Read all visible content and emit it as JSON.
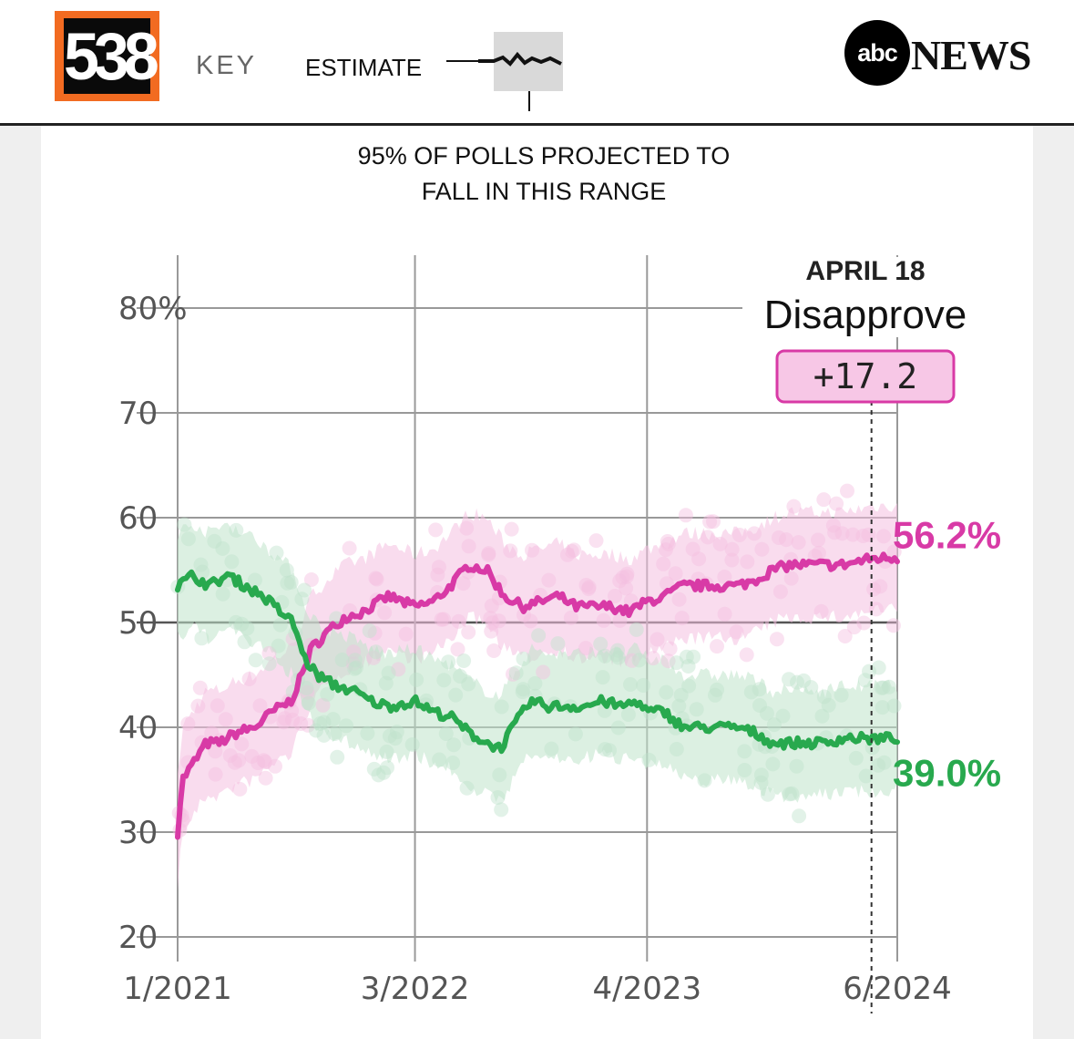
{
  "header": {
    "logo": "538",
    "key_label": "KEY",
    "estimate_label": "ESTIMATE",
    "abc_logo": "abc",
    "abc_news": "NEWS",
    "key_caption_line1": "95% OF POLLS PROJECTED TO",
    "key_caption_line2": "FALL IN THIS RANGE"
  },
  "colors": {
    "disapprove": "#d83aa6",
    "approve": "#28a94e",
    "disapprove_band": "#f4bfe0",
    "approve_band": "#bfe3cb",
    "grid": "#999999"
  },
  "annotation": {
    "date": "APRIL 18",
    "label": "Disapprove",
    "margin": "+17.2"
  },
  "chart_data": {
    "type": "line",
    "title": "",
    "xlabel": "",
    "ylabel": "",
    "x_tick_labels": [
      "1/2021",
      "3/2022",
      "4/2023",
      "6/2024"
    ],
    "y_tick_labels": [
      "20",
      "30",
      "40",
      "50",
      "60",
      "70",
      "80%"
    ],
    "y_ticks": [
      20,
      30,
      40,
      50,
      60,
      70,
      80
    ],
    "ylim": [
      20,
      85
    ],
    "xlim": [
      "2021-01-20",
      "2024-06-01"
    ],
    "x_ticks": [
      "2021-01-20",
      "2022-03-01",
      "2023-04-01",
      "2024-06-01"
    ],
    "highlight_date": "2024-04-18",
    "grid": true,
    "band_halfwidth": 5,
    "series": [
      {
        "key": "disapprove",
        "end_label": "56.2%",
        "points": [
          [
            "2021-01-20",
            30.0
          ],
          [
            "2021-01-28",
            35.0
          ],
          [
            "2021-02-15",
            36.5
          ],
          [
            "2021-03-10",
            38.5
          ],
          [
            "2021-04-01",
            38.5
          ],
          [
            "2021-05-01",
            39.5
          ],
          [
            "2021-06-01",
            40.0
          ],
          [
            "2021-07-01",
            41.5
          ],
          [
            "2021-08-01",
            42.5
          ],
          [
            "2021-08-20",
            45.0
          ],
          [
            "2021-09-05",
            47.5
          ],
          [
            "2021-10-01",
            49.0
          ],
          [
            "2021-11-01",
            50.5
          ],
          [
            "2021-12-01",
            51.0
          ],
          [
            "2022-01-15",
            52.5
          ],
          [
            "2022-03-01",
            51.5
          ],
          [
            "2022-04-01",
            52.0
          ],
          [
            "2022-05-01",
            53.5
          ],
          [
            "2022-06-01",
            55.5
          ],
          [
            "2022-07-01",
            55.0
          ],
          [
            "2022-08-01",
            52.5
          ],
          [
            "2022-09-01",
            51.5
          ],
          [
            "2022-10-01",
            52.0
          ],
          [
            "2022-11-01",
            52.5
          ],
          [
            "2022-12-01",
            51.5
          ],
          [
            "2023-01-01",
            51.5
          ],
          [
            "2023-02-01",
            51.5
          ],
          [
            "2023-03-01",
            51.0
          ],
          [
            "2023-04-01",
            52.0
          ],
          [
            "2023-05-01",
            52.5
          ],
          [
            "2023-06-01",
            53.5
          ],
          [
            "2023-07-01",
            53.5
          ],
          [
            "2023-08-01",
            53.5
          ],
          [
            "2023-09-01",
            53.5
          ],
          [
            "2023-10-01",
            54.0
          ],
          [
            "2023-11-01",
            55.0
          ],
          [
            "2023-12-01",
            55.5
          ],
          [
            "2024-01-01",
            55.5
          ],
          [
            "2024-02-01",
            55.5
          ],
          [
            "2024-03-01",
            55.5
          ],
          [
            "2024-04-18",
            56.1
          ],
          [
            "2024-06-01",
            56.2
          ]
        ]
      },
      {
        "key": "approve",
        "end_label": "39.0%",
        "points": [
          [
            "2021-01-20",
            53.5
          ],
          [
            "2021-02-15",
            54.5
          ],
          [
            "2021-03-15",
            53.5
          ],
          [
            "2021-04-15",
            54.5
          ],
          [
            "2021-05-15",
            53.5
          ],
          [
            "2021-06-15",
            52.5
          ],
          [
            "2021-07-15",
            51.0
          ],
          [
            "2021-08-05",
            50.0
          ],
          [
            "2021-08-25",
            46.5
          ],
          [
            "2021-09-15",
            45.0
          ],
          [
            "2021-10-15",
            44.0
          ],
          [
            "2021-11-15",
            43.5
          ],
          [
            "2021-12-15",
            42.5
          ],
          [
            "2022-01-15",
            42.0
          ],
          [
            "2022-03-01",
            42.5
          ],
          [
            "2022-04-01",
            41.5
          ],
          [
            "2022-05-01",
            41.0
          ],
          [
            "2022-06-01",
            39.5
          ],
          [
            "2022-07-01",
            38.5
          ],
          [
            "2022-07-25",
            38.0
          ],
          [
            "2022-08-15",
            40.0
          ],
          [
            "2022-09-15",
            42.5
          ],
          [
            "2022-10-15",
            42.0
          ],
          [
            "2022-11-15",
            42.0
          ],
          [
            "2022-12-15",
            42.0
          ],
          [
            "2023-01-15",
            42.5
          ],
          [
            "2023-02-15",
            42.0
          ],
          [
            "2023-03-15",
            42.5
          ],
          [
            "2023-04-01",
            41.5
          ],
          [
            "2023-05-01",
            41.5
          ],
          [
            "2023-06-01",
            40.0
          ],
          [
            "2023-07-01",
            40.0
          ],
          [
            "2023-08-01",
            40.0
          ],
          [
            "2023-09-01",
            40.0
          ],
          [
            "2023-10-01",
            39.5
          ],
          [
            "2023-11-01",
            38.5
          ],
          [
            "2023-12-01",
            38.5
          ],
          [
            "2024-01-01",
            38.5
          ],
          [
            "2024-02-01",
            38.5
          ],
          [
            "2024-03-01",
            39.0
          ],
          [
            "2024-04-18",
            38.9
          ],
          [
            "2024-06-01",
            39.0
          ]
        ]
      }
    ]
  }
}
